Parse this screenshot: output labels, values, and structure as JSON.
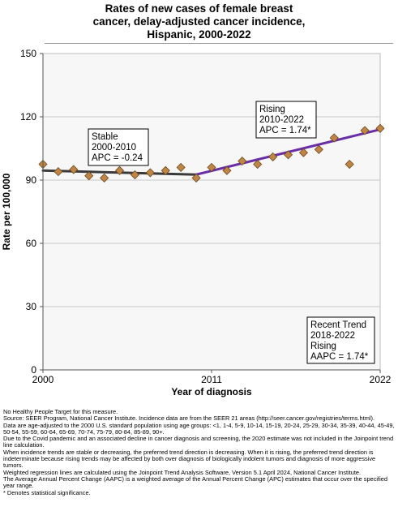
{
  "title_lines": [
    "Rates of new cases of female breast",
    "cancer, delay-adjusted cancer incidence,",
    "Hispanic,  2000-2022"
  ],
  "colors": {
    "point_fill": "#c08445",
    "point_stroke": "#6b4a1e",
    "trend_stable": "#3a3a3a",
    "trend_rising": "#6a2fa6",
    "plot_bg": "#f7f7f7",
    "grid": "#c8c8c8"
  },
  "chart_data": {
    "type": "scatter",
    "xlabel": "Year of diagnosis",
    "ylabel": "Rate per 100,000",
    "xlim": [
      2000,
      2022
    ],
    "ylim": [
      0,
      150
    ],
    "x_tick_labels": [
      "2000",
      "2011",
      "2022"
    ],
    "y_tick_labels": [
      "0",
      "30",
      "60",
      "90",
      "120",
      "150"
    ],
    "grid": true,
    "points": [
      {
        "year": 2000,
        "rate": 97.5
      },
      {
        "year": 2001,
        "rate": 94.0
      },
      {
        "year": 2002,
        "rate": 95.0
      },
      {
        "year": 2003,
        "rate": 92.0
      },
      {
        "year": 2004,
        "rate": 91.0
      },
      {
        "year": 2005,
        "rate": 94.5
      },
      {
        "year": 2006,
        "rate": 92.5
      },
      {
        "year": 2007,
        "rate": 93.5
      },
      {
        "year": 2008,
        "rate": 94.5
      },
      {
        "year": 2009,
        "rate": 96.0
      },
      {
        "year": 2010,
        "rate": 91.0
      },
      {
        "year": 2011,
        "rate": 96.0
      },
      {
        "year": 2012,
        "rate": 94.5
      },
      {
        "year": 2013,
        "rate": 99.0
      },
      {
        "year": 2014,
        "rate": 97.5
      },
      {
        "year": 2015,
        "rate": 101.0
      },
      {
        "year": 2016,
        "rate": 102.0
      },
      {
        "year": 2017,
        "rate": 103.0
      },
      {
        "year": 2018,
        "rate": 104.5
      },
      {
        "year": 2019,
        "rate": 110.0
      },
      {
        "year": 2020,
        "rate": 97.5
      },
      {
        "year": 2021,
        "rate": 113.5
      },
      {
        "year": 2022,
        "rate": 114.5
      }
    ],
    "trend_segments": [
      {
        "label": "stable",
        "x": [
          2000,
          2010
        ],
        "y": [
          94.5,
          92.6
        ]
      },
      {
        "label": "rising",
        "x": [
          2010,
          2022
        ],
        "y": [
          92.6,
          114.0
        ]
      }
    ],
    "annotations": [
      {
        "id": "stable",
        "lines": [
          "Stable",
          "2000-2010",
          "APC = -0.24"
        ]
      },
      {
        "id": "rising",
        "lines": [
          "Rising",
          "2010-2022",
          "APC =  1.74*"
        ]
      },
      {
        "id": "recent",
        "lines": [
          "Recent Trend",
          "2018-2022",
          "Rising",
          "AAPC =  1.74*"
        ]
      }
    ]
  },
  "footnotes": [
    "No Healthy People Target for this measure.",
    "Source: SEER Program, National Cancer Institute. Incidence data are from the SEER 21 areas (http://seer.cancer.gov/registries/terms.html).",
    "Data are age-adjusted to the 2000 U.S. standard population using age groups: <1, 1-4, 5-9, 10-14, 15-19, 20-24, 25-29, 30-34, 35-39, 40-44, 45-49, 50-54, 55-59, 60-64, 65-69, 70-74, 75-79, 80-84, 85-89, 90+.",
    "Due to the Covid pandemic and an associated decline in cancer diagnosis and screening, the 2020 estimate was not included in the Joinpoint trend line calculation.",
    "When incidence trends are stable or decreasing, the preferred trend direction is decreasing. When it is rising, the preferred trend direction is indeterminate because rising trends may be affected by both over diagnosis of biologically indolent tumors and diagnosis of more aggressive tumors.",
    "Weighted regression lines are calculated using the Joinpoint Trend Analysis Software, Version 5.1 April 2024, National Cancer Institute.",
    "The Average Annual Percent Change (AAPC) is a weighted average of the Annual Percent Change (APC) estimates that occur over the specified year range.",
    "* Denotes statistical significance."
  ]
}
